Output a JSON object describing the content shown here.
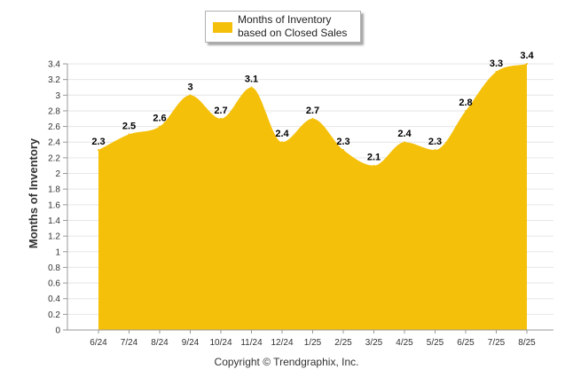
{
  "legend": {
    "label": "Months of Inventory based on Closed Sales",
    "color": "#F5C00A"
  },
  "footer": {
    "copyright": "Copyright © Trendgraphix, Inc."
  },
  "chart_data": {
    "type": "area",
    "title": "",
    "xlabel": "",
    "ylabel": "Months of Inventory",
    "categories": [
      "6/24",
      "7/24",
      "8/24",
      "9/24",
      "10/24",
      "11/24",
      "12/24",
      "1/25",
      "2/25",
      "3/25",
      "4/25",
      "5/25",
      "6/25",
      "7/25",
      "8/25"
    ],
    "series": [
      {
        "name": "Months of Inventory based on Closed Sales",
        "values": [
          2.3,
          2.5,
          2.6,
          3.0,
          2.7,
          3.1,
          2.4,
          2.7,
          2.3,
          2.1,
          2.4,
          2.3,
          2.8,
          3.3,
          3.4
        ],
        "data_labels": [
          "2.3",
          "2.5",
          "2.6",
          "3",
          "2.7",
          "3.1",
          "2.4",
          "2.7",
          "2.3",
          "2.1",
          "2.4",
          "2.3",
          "2.8",
          "3.3",
          "3.4"
        ]
      }
    ],
    "ylim": [
      0,
      3.4
    ],
    "yticks": [
      "0",
      "0.2",
      "0.4",
      "0.6",
      "0.8",
      "1",
      "1.2",
      "1.4",
      "1.6",
      "1.8",
      "2",
      "2.2",
      "2.4",
      "2.6",
      "2.8",
      "3",
      "3.2",
      "3.4"
    ],
    "grid": true,
    "legend_position": "top-center",
    "colors": {
      "fill": "#F5C00A",
      "grid": "#e6e6e6",
      "axis": "#999999",
      "text": "#333333"
    }
  }
}
